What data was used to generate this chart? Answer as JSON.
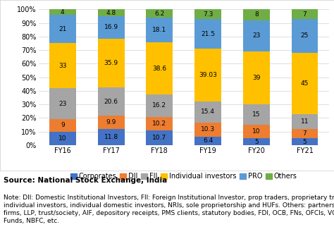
{
  "categories": [
    "FY16",
    "FY17",
    "FY18",
    "FY19",
    "FY20",
    "FY21"
  ],
  "series": {
    "Corporates": [
      10,
      11.8,
      10.7,
      6.4,
      5,
      5
    ],
    "DII": [
      9,
      9.9,
      10.2,
      10.3,
      10,
      7
    ],
    "FII": [
      23,
      20.6,
      16.2,
      15.4,
      15,
      11
    ],
    "Individual investors": [
      33,
      35.9,
      38.6,
      39.03,
      39,
      45
    ],
    "PRO": [
      21,
      16.9,
      18.1,
      21.5,
      23,
      25
    ],
    "Others": [
      4,
      4.8,
      6.2,
      7.3,
      8,
      7
    ]
  },
  "colors": {
    "Corporates": "#4472c4",
    "DII": "#ed7d31",
    "FII": "#a5a5a5",
    "Individual investors": "#ffc000",
    "PRO": "#5b9bd5",
    "Others": "#70ad47"
  },
  "ylim": [
    0,
    100
  ],
  "yticks": [
    0,
    10,
    20,
    30,
    40,
    50,
    60,
    70,
    80,
    90,
    100
  ],
  "ytick_labels": [
    "0%",
    "10%",
    "20%",
    "30%",
    "40%",
    "50%",
    "60%",
    "70%",
    "80%",
    "90%",
    "100%"
  ],
  "source_text": "Source: National Stock Exchange, India",
  "note_line1": "Note: DII: Domestic Institutional Investors, FII: Foreign Institutional Investor, prop traders, proprietary traders,",
  "note_line2": "individual investors, individual domestic investors, NRIs, sole proprietorship and HUFs. Others: partnership",
  "note_line3": "firms, LLP, trust/society, AIF, depository receipts, PMS clients, statutory bodies, FDI, OCB, FNs, OFCIs, VC",
  "note_line4": "Funds, NBFC, etc.",
  "legend_order": [
    "Corporates",
    "DII",
    "FII",
    "Individual investors",
    "PRO",
    "Others"
  ],
  "bar_width": 0.55,
  "background_color": "#ffffff",
  "grid_color": "#d9d9d9",
  "font_size_ticks": 7,
  "font_size_labels": 6.5,
  "font_size_legend": 7,
  "font_size_source": 7.5,
  "font_size_note": 6.5
}
